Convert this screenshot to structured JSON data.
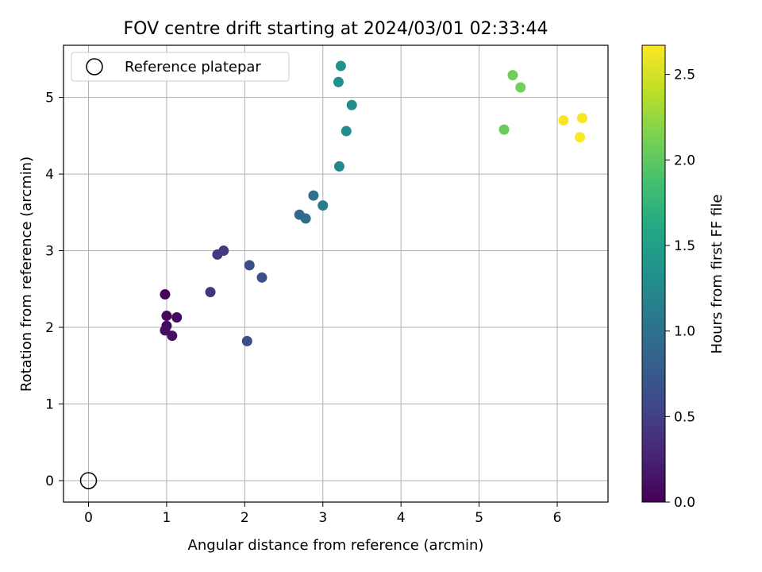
{
  "chart_data": {
    "type": "scatter",
    "title": "FOV centre drift starting at 2024/03/01 02:33:44",
    "xlabel": "Angular distance from reference (arcmin)",
    "ylabel": "Rotation from reference (arcmin)",
    "xlim": [
      -0.32,
      6.65
    ],
    "ylim": [
      -0.28,
      5.68
    ],
    "xticks": [
      0,
      1,
      2,
      3,
      4,
      5,
      6
    ],
    "yticks": [
      0,
      1,
      2,
      3,
      4,
      5
    ],
    "grid": true,
    "legend": {
      "placement": "top-left",
      "entries": [
        "Reference platepar"
      ]
    },
    "reference_point": {
      "x": 0,
      "y": 0
    },
    "colorbar": {
      "label": "Hours from first FF file",
      "colormap": "viridis",
      "range": [
        0,
        2.67
      ],
      "ticks": [
        "0.0",
        "0.5",
        "1.0",
        "1.5",
        "2.0",
        "2.5"
      ],
      "tick_values": [
        0,
        0.5,
        1.0,
        1.5,
        2.0,
        2.5
      ]
    },
    "points": [
      {
        "x": 0.98,
        "y": 2.43,
        "c": 0.02
      },
      {
        "x": 1.0,
        "y": 2.15,
        "c": 0.05
      },
      {
        "x": 1.13,
        "y": 2.13,
        "c": 0.07
      },
      {
        "x": 1.0,
        "y": 2.02,
        "c": 0.08
      },
      {
        "x": 0.98,
        "y": 1.96,
        "c": 0.1
      },
      {
        "x": 1.07,
        "y": 1.89,
        "c": 0.12
      },
      {
        "x": 1.56,
        "y": 2.46,
        "c": 0.4
      },
      {
        "x": 1.65,
        "y": 2.95,
        "c": 0.42
      },
      {
        "x": 1.73,
        "y": 3.0,
        "c": 0.45
      },
      {
        "x": 2.06,
        "y": 2.81,
        "c": 0.62
      },
      {
        "x": 2.22,
        "y": 2.65,
        "c": 0.65
      },
      {
        "x": 2.03,
        "y": 1.82,
        "c": 0.62
      },
      {
        "x": 2.7,
        "y": 3.47,
        "c": 0.9
      },
      {
        "x": 2.78,
        "y": 3.42,
        "c": 0.92
      },
      {
        "x": 2.88,
        "y": 3.72,
        "c": 0.98
      },
      {
        "x": 3.0,
        "y": 3.59,
        "c": 1.1
      },
      {
        "x": 3.21,
        "y": 4.1,
        "c": 1.25
      },
      {
        "x": 3.3,
        "y": 4.56,
        "c": 1.3
      },
      {
        "x": 3.37,
        "y": 4.9,
        "c": 1.3
      },
      {
        "x": 3.2,
        "y": 5.2,
        "c": 1.32
      },
      {
        "x": 3.23,
        "y": 5.41,
        "c": 1.33
      },
      {
        "x": 5.32,
        "y": 4.58,
        "c": 2.05
      },
      {
        "x": 5.43,
        "y": 5.29,
        "c": 2.08
      },
      {
        "x": 5.53,
        "y": 5.13,
        "c": 2.1
      },
      {
        "x": 6.08,
        "y": 4.7,
        "c": 2.65
      },
      {
        "x": 6.32,
        "y": 4.73,
        "c": 2.65
      },
      {
        "x": 6.29,
        "y": 4.48,
        "c": 2.66
      }
    ]
  }
}
